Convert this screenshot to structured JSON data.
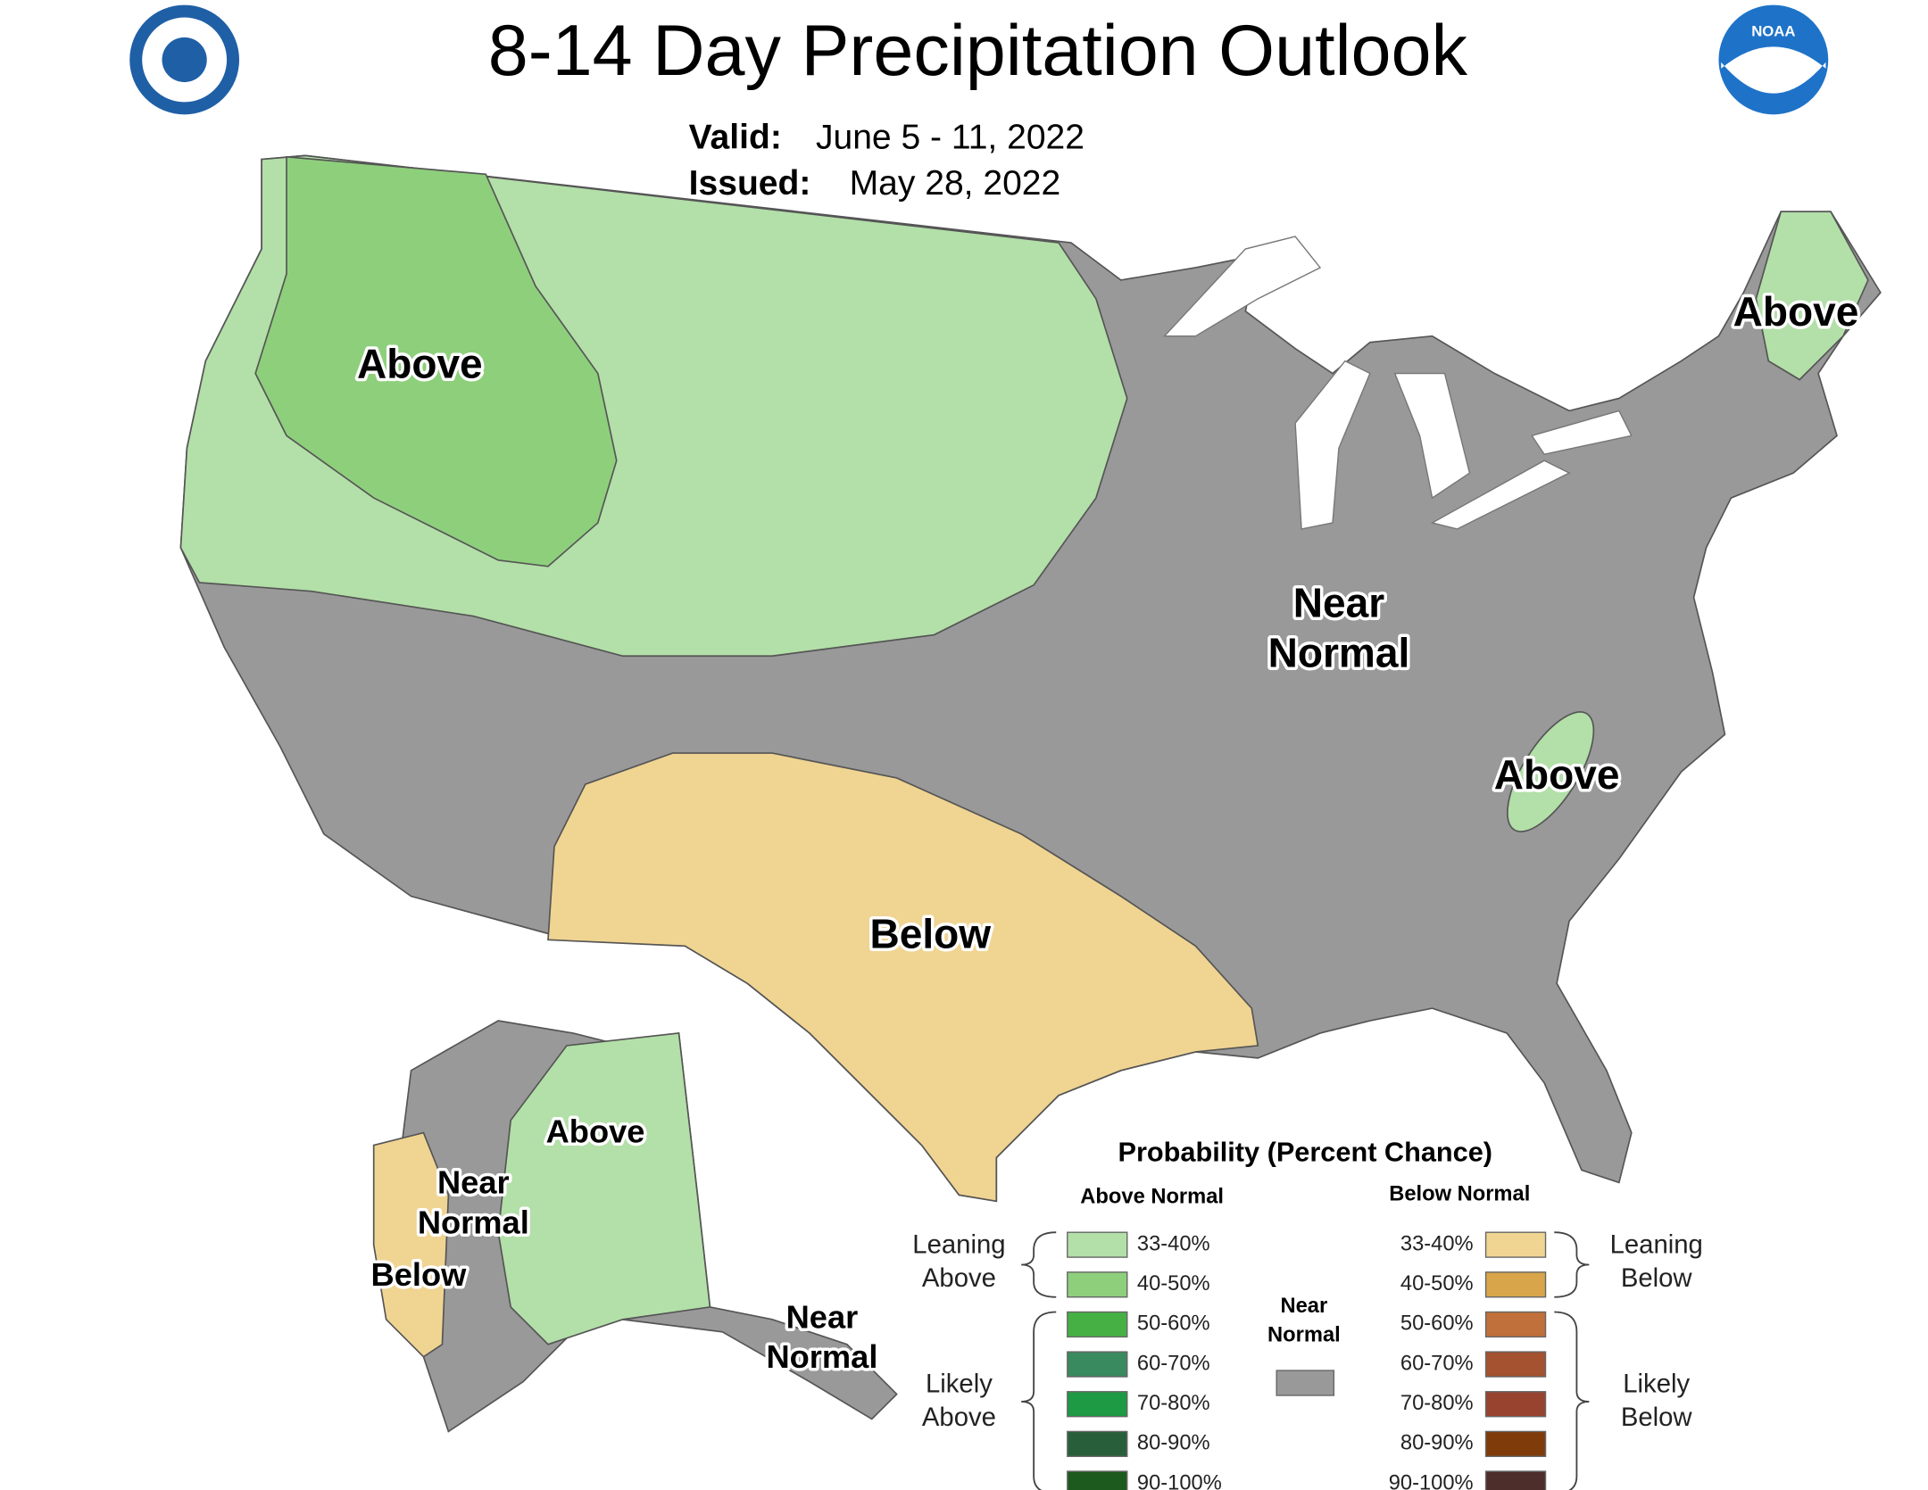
{
  "header": {
    "title": "8-14 Day Precipitation Outlook",
    "valid_label": "Valid:",
    "valid": "June 5 - 11, 2022",
    "issued_label": "Issued:",
    "issued": "May 28, 2022",
    "noaa_logo": "NOAA"
  },
  "map_labels": [
    "Above",
    "Near",
    "Normal",
    "Above",
    "Above",
    "Below",
    "Above",
    "Near",
    "Normal",
    "Below",
    "Near",
    "Normal"
  ],
  "legend": {
    "title": "Probability (Percent Chance)",
    "above_header": "Above Normal",
    "below_header": "Below Normal",
    "above": [
      {
        "label": "33-40%",
        "color": "#b3dfa8"
      },
      {
        "label": "40-50%",
        "color": "#8ecf7c"
      },
      {
        "label": "50-60%",
        "color": "#46b045"
      },
      {
        "label": "60-70%",
        "color": "#3a8a5f"
      },
      {
        "label": "70-80%",
        "color": "#1e9a44"
      },
      {
        "label": "80-90%",
        "color": "#285f3a"
      },
      {
        "label": "90-100%",
        "color": "#1d5a1d"
      }
    ],
    "below": [
      {
        "label": "33-40%",
        "color": "#f0d492"
      },
      {
        "label": "40-50%",
        "color": "#d8a54a"
      },
      {
        "label": "50-60%",
        "color": "#c0703a"
      },
      {
        "label": "60-70%",
        "color": "#a4522f"
      },
      {
        "label": "70-80%",
        "color": "#98432f"
      },
      {
        "label": "80-90%",
        "color": "#7f3c0a"
      },
      {
        "label": "90-100%",
        "color": "#4e2e2a"
      }
    ],
    "near": {
      "lines": [
        "Near",
        "Normal"
      ],
      "color": "#999999"
    },
    "leaning_above": [
      "Leaning",
      "Above"
    ],
    "likely_above": [
      "Likely",
      "Above"
    ],
    "leaning_below": [
      "Leaning",
      "Below"
    ],
    "likely_below": [
      "Likely",
      "Below"
    ]
  }
}
